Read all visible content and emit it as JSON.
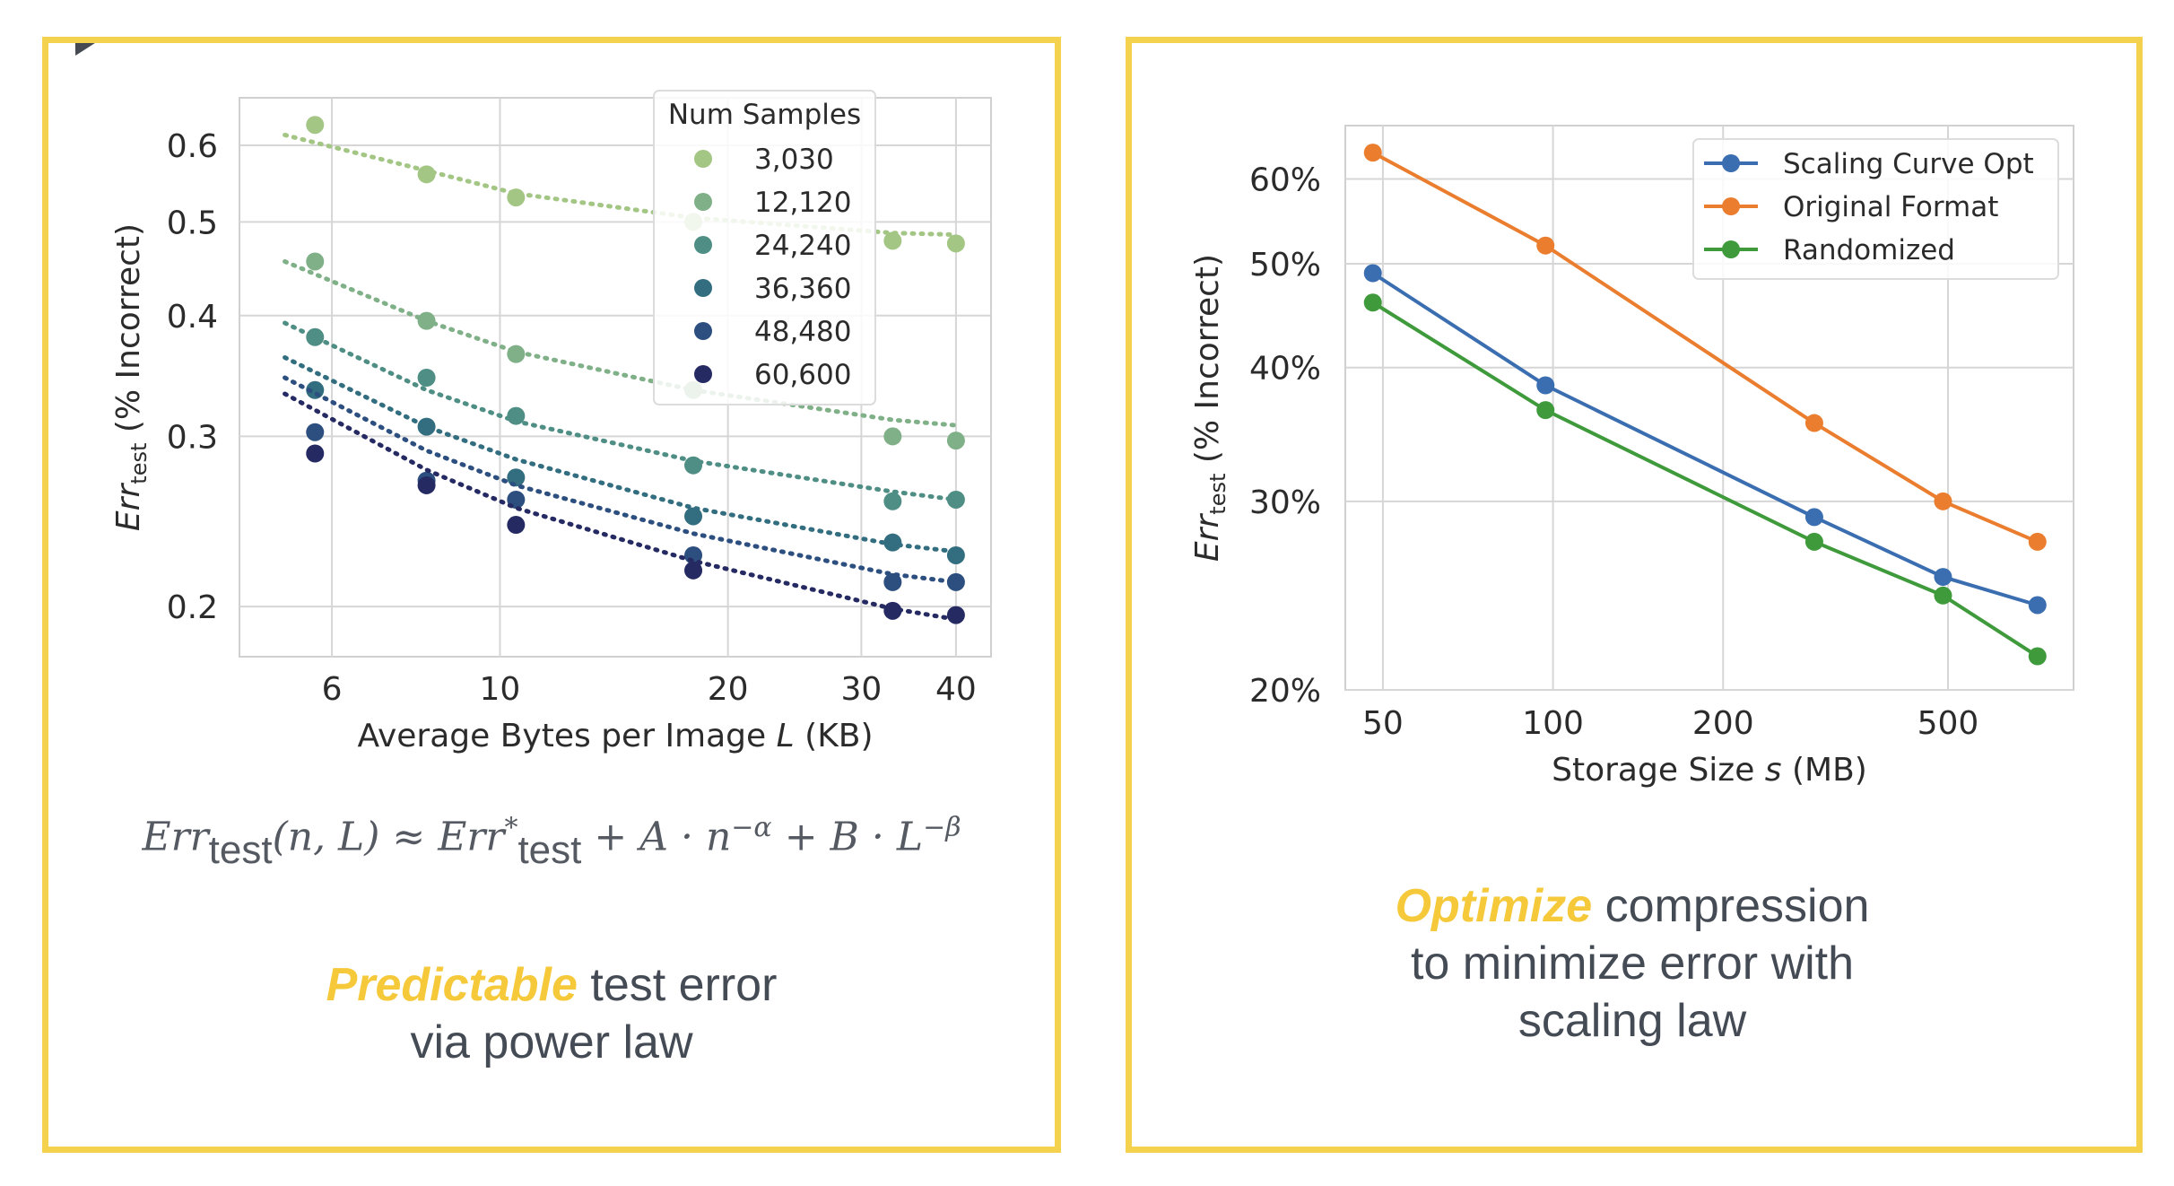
{
  "chart_data": [
    {
      "type": "scatter",
      "xlabel_parts": {
        "text": "Average Bytes per Image ",
        "var": "L",
        "unit": " (KB)"
      },
      "ylabel_parts": {
        "var": "Err",
        "sub": "test",
        "text": " (% Incorrect)"
      },
      "x_scale": "log",
      "y_scale": "log",
      "xlim": [
        4.53,
        44.5
      ],
      "ylim": [
        0.1775,
        0.672
      ],
      "x_ticks": [
        6,
        10,
        20,
        30,
        40
      ],
      "x_tick_labels": [
        "6",
        "10",
        "20",
        "30",
        "40"
      ],
      "y_ticks": [
        0.2,
        0.3,
        0.4,
        0.5,
        0.6
      ],
      "y_tick_labels": [
        "0.2",
        "0.3",
        "0.4",
        "0.5",
        "0.6"
      ],
      "grid": true,
      "legend": {
        "title": "Num Samples",
        "placement": "top-right"
      },
      "x": [
        5.7,
        8.0,
        10.5,
        18,
        33,
        40
      ],
      "fit_x": [
        5.2,
        8.0,
        10.5,
        18,
        33,
        40
      ],
      "series": [
        {
          "name": "3,030",
          "color": "#a3c685",
          "values": [
            0.63,
            0.56,
            0.53,
            0.5,
            0.478,
            0.475
          ],
          "fit": [
            0.615,
            0.565,
            0.535,
            0.505,
            0.487,
            0.485
          ]
        },
        {
          "name": "12,120",
          "color": "#7fb087",
          "values": [
            0.455,
            0.395,
            0.365,
            0.335,
            0.3,
            0.297
          ],
          "fit": [
            0.455,
            0.395,
            0.367,
            0.335,
            0.312,
            0.308
          ]
        },
        {
          "name": "24,240",
          "color": "#4f8e84",
          "values": [
            0.38,
            0.345,
            0.315,
            0.28,
            0.257,
            0.258
          ],
          "fit": [
            0.393,
            0.335,
            0.311,
            0.283,
            0.263,
            0.258
          ]
        },
        {
          "name": "36,360",
          "color": "#326e7f",
          "values": [
            0.335,
            0.307,
            0.272,
            0.248,
            0.233,
            0.226
          ],
          "fit": [
            0.362,
            0.307,
            0.284,
            0.253,
            0.232,
            0.228
          ]
        },
        {
          "name": "48,480",
          "color": "#2c4f7f",
          "values": [
            0.303,
            0.27,
            0.258,
            0.226,
            0.212,
            0.212
          ],
          "fit": [
            0.345,
            0.29,
            0.267,
            0.238,
            0.216,
            0.212
          ]
        },
        {
          "name": "60,600",
          "color": "#262a63",
          "values": [
            0.288,
            0.267,
            0.243,
            0.218,
            0.198,
            0.196
          ],
          "fit": [
            0.332,
            0.277,
            0.253,
            0.223,
            0.199,
            0.194
          ]
        }
      ]
    },
    {
      "type": "line",
      "xlabel_parts": {
        "text": "Storage Size ",
        "var": "s",
        "unit": " (MB)"
      },
      "ylabel_parts": {
        "var": "Err",
        "sub": "test",
        "text": " (% Incorrect)"
      },
      "x_scale": "log",
      "y_scale": "log",
      "xlim": [
        42.9,
        834
      ],
      "ylim": [
        0.2,
        0.673
      ],
      "x_ticks": [
        50,
        100,
        200,
        500
      ],
      "x_tick_labels": [
        "50",
        "100",
        "200",
        "500"
      ],
      "y_ticks": [
        0.2,
        0.3,
        0.4,
        0.5,
        0.6
      ],
      "y_tick_labels": [
        "20%",
        "30%",
        "40%",
        "50%",
        "60%"
      ],
      "grid": true,
      "legend": {
        "placement": "top-right"
      },
      "x": [
        48,
        97,
        290,
        490,
        720
      ],
      "series": [
        {
          "name": "Scaling Curve Opt",
          "color": "#3a6eb0",
          "values": [
            0.49,
            0.385,
            0.29,
            0.255,
            0.24
          ]
        },
        {
          "name": "Original Format",
          "color": "#ea7d2e",
          "values": [
            0.635,
            0.52,
            0.355,
            0.3,
            0.275
          ]
        },
        {
          "name": "Randomized",
          "color": "#3f9a3b",
          "values": [
            0.46,
            0.365,
            0.275,
            0.245,
            0.215
          ]
        }
      ]
    }
  ],
  "formula": {
    "lhs": "Err",
    "lhs_sub": "test",
    "args": "(n, L) ≈ ",
    "opt": "Err",
    "opt_sup": "*",
    "opt_sub": "test",
    "term1": " + A · n",
    "exp1": "−α",
    "term2": " + B · L",
    "exp2": "−β"
  },
  "captions": {
    "left": {
      "highlight": "Predictable",
      "line1_rest": " test error",
      "line2": "via power law"
    },
    "right": {
      "highlight": "Optimize",
      "line1_rest": " compression",
      "line2": "to minimize error with",
      "line3": "scaling law"
    }
  },
  "colors": {
    "frame": "#f5d24e",
    "highlight": "#f5c93a",
    "text": "#444b55"
  }
}
